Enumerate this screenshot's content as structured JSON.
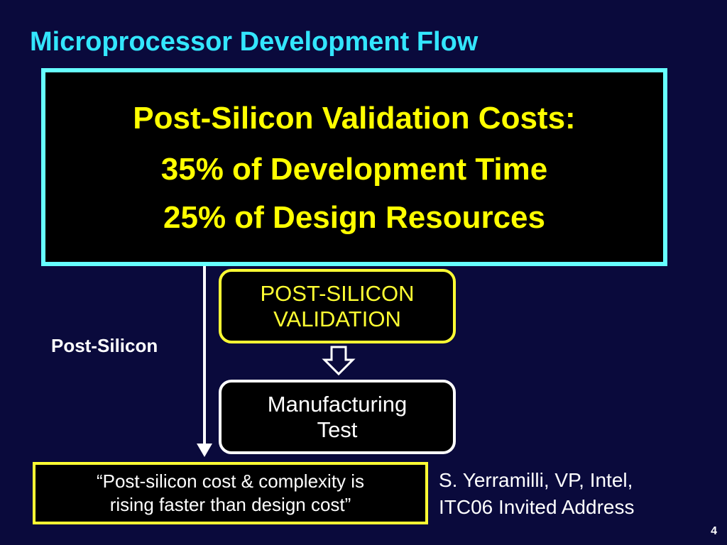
{
  "slide": {
    "title": "Microprocessor Development Flow",
    "callout": {
      "line1": "Post-Silicon Validation Costs:",
      "line2": "35% of Development Time",
      "line3": "25% of Design Resources"
    },
    "phase_label": "Post-Silicon",
    "flow": {
      "validation_line1": "POST-SILICON",
      "validation_line2": "VALIDATION",
      "mfg_line1": "Manufacturing",
      "mfg_line2": "Test"
    },
    "quote": {
      "line1": "“Post-silicon cost & complexity is",
      "line2": "rising faster than design cost”"
    },
    "attribution": {
      "line1": "S. Yerramilli, VP, Intel,",
      "line2": "ITC06 Invited Address"
    },
    "page_number": "4",
    "colors": {
      "background": "#0a0a3c",
      "title": "#33e6ff",
      "callout_border": "#66ffff",
      "highlight_text": "#ffff00",
      "text": "#ffffff"
    },
    "icons": {
      "timeline": "down-arrow-icon",
      "flow_step": "hollow-down-arrow-icon"
    }
  }
}
